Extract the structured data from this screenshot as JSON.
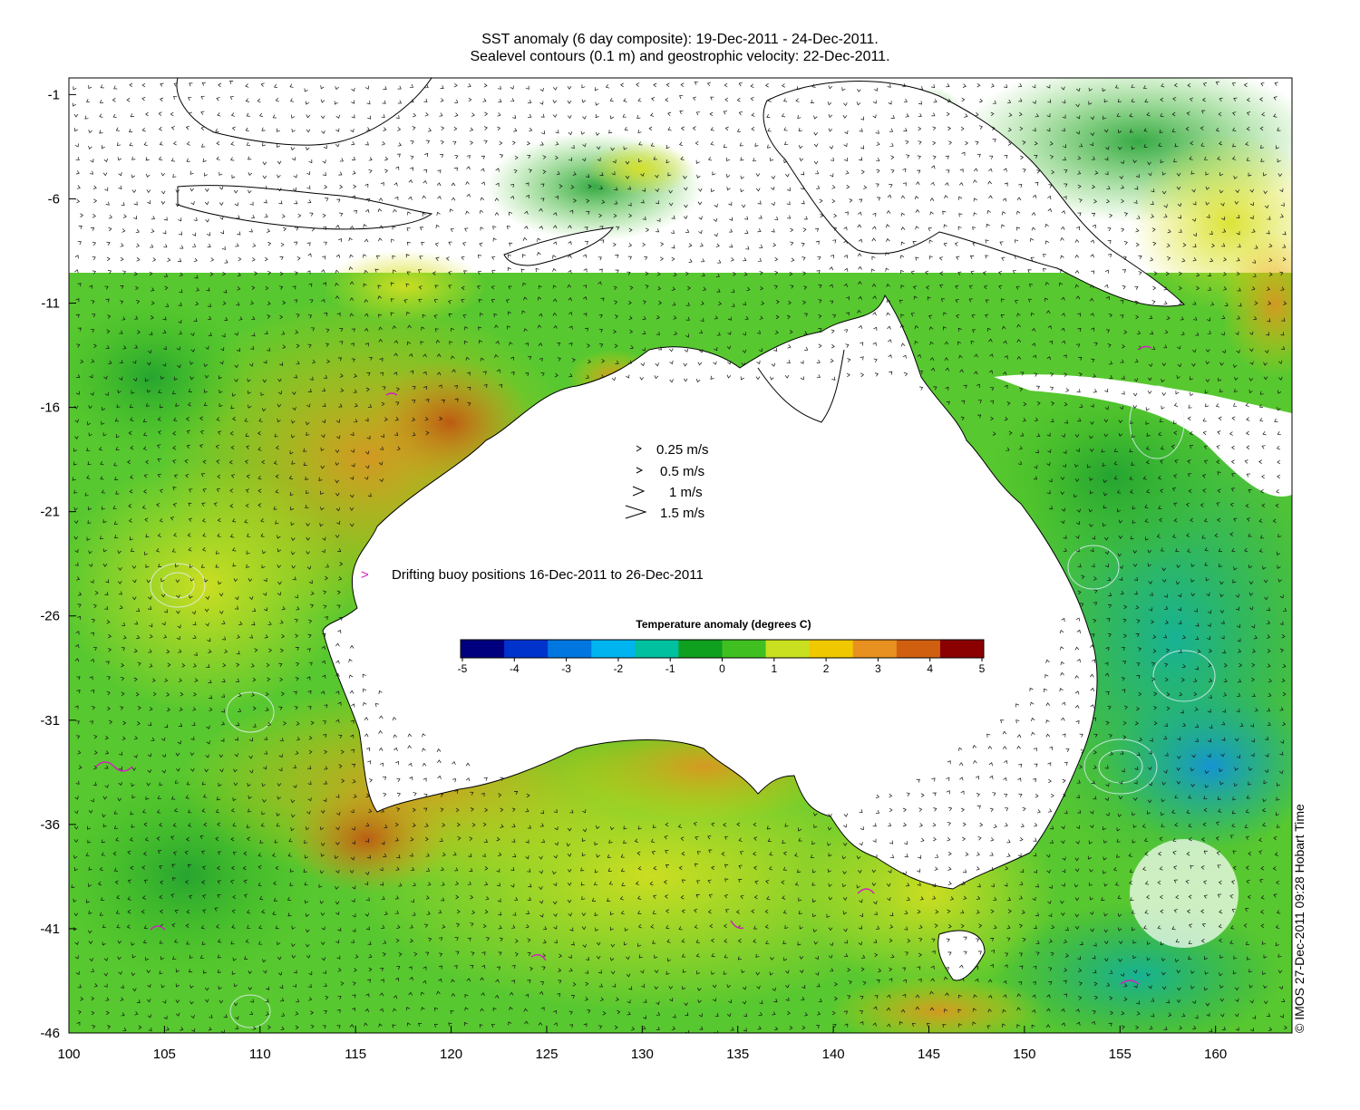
{
  "title": {
    "line1": "SST anomaly (6 day composite): 19-Dec-2011 - 24-Dec-2011.",
    "line2": "Sealevel contours (0.1 m) and geostrophic velocity: 22-Dec-2011."
  },
  "map": {
    "lon_range": [
      100,
      164
    ],
    "lat_range": [
      -46,
      -0.2
    ],
    "x_ticks": [
      "100",
      "105",
      "110",
      "115",
      "120",
      "125",
      "130",
      "135",
      "140",
      "145",
      "150",
      "155",
      "160"
    ],
    "x_tick_values": [
      100,
      105,
      110,
      115,
      120,
      125,
      130,
      135,
      140,
      145,
      150,
      155,
      160
    ],
    "y_ticks": [
      "-1",
      "-6",
      "-11",
      "-16",
      "-21",
      "-26",
      "-31",
      "-36",
      "-41",
      "-46"
    ],
    "y_tick_values": [
      -1,
      -6,
      -11,
      -16,
      -21,
      -26,
      -31,
      -36,
      -41,
      -46
    ],
    "land_color": "#ffffff",
    "coast_color": "#000000"
  },
  "velocity_legend": {
    "items": [
      {
        "label": "0.25 m/s",
        "speed": 0.25
      },
      {
        "label": "0.5 m/s",
        "speed": 0.5
      },
      {
        "label": "1 m/s",
        "speed": 1
      },
      {
        "label": "1.5 m/s",
        "speed": 1.5
      }
    ]
  },
  "buoy_legend": {
    "symbol": ">",
    "label": "Drifting buoy positions 16-Dec-2011 to 26-Dec-2011",
    "color": "#d020c0"
  },
  "colorbar": {
    "title": "Temperature anomaly (degrees C)",
    "ticks": [
      "-5",
      "-4",
      "-3",
      "-2",
      "-1",
      "0",
      "1",
      "2",
      "3",
      "4",
      "5"
    ],
    "tick_values": [
      -5,
      -4,
      -3,
      -2,
      -1,
      0,
      1,
      2,
      3,
      4,
      5
    ],
    "colors": [
      "#00007f",
      "#0033cc",
      "#0077e0",
      "#00b4f0",
      "#00c0a0",
      "#10a020",
      "#40c020",
      "#c8e020",
      "#f0c800",
      "#e89020",
      "#d06010",
      "#8b0000"
    ]
  },
  "credit": "© IMOS 27-Dec-2011 09:28 Hobart Time"
}
